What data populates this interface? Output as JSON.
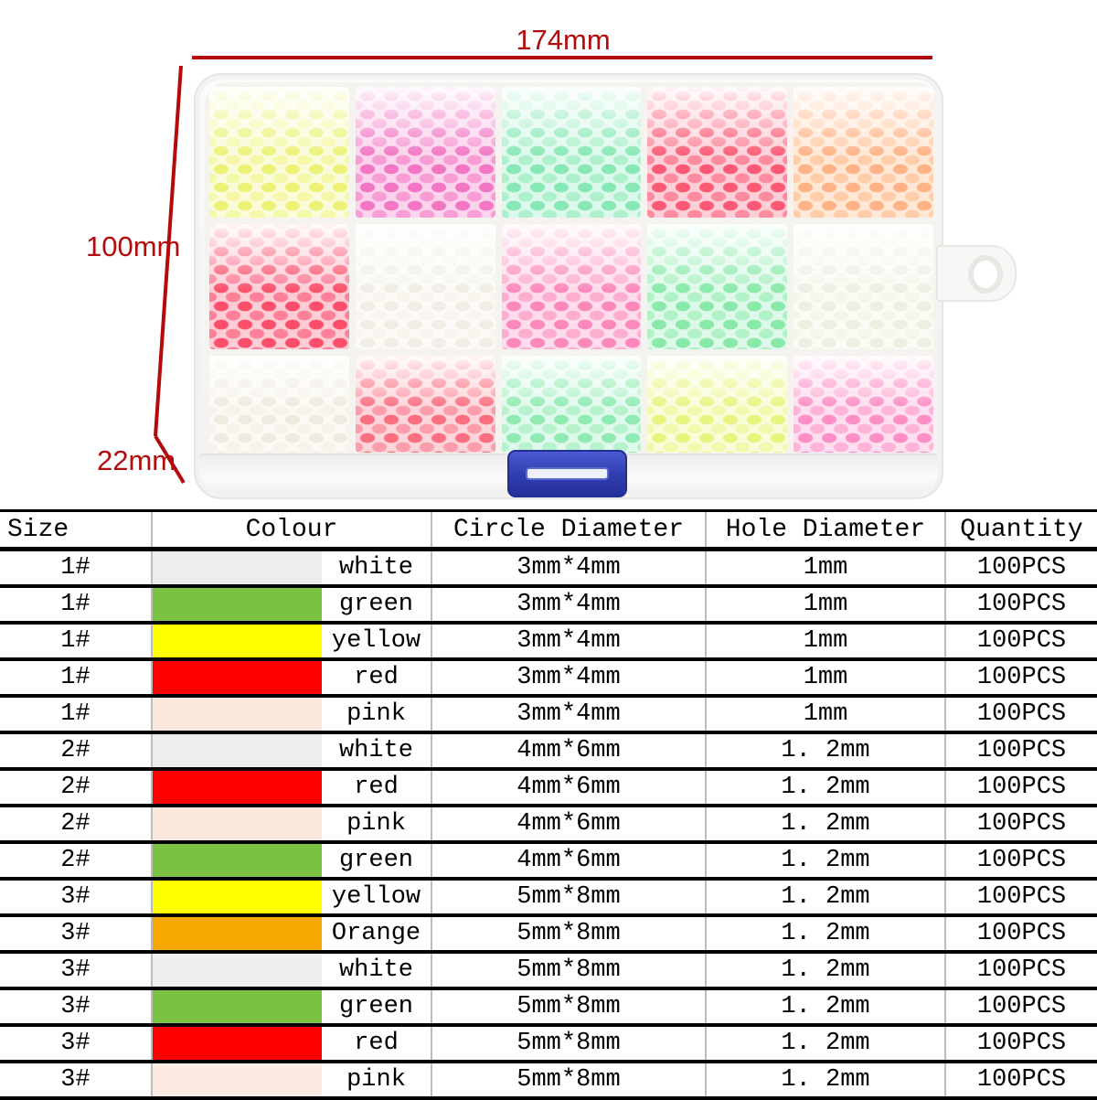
{
  "annotations": {
    "width_label": "174mm",
    "height_label": "100mm",
    "depth_label": "22mm",
    "line_color": "#b30b0b",
    "text_color": "#b30b0b"
  },
  "box": {
    "latch_color": "#2f3cae",
    "compartments": [
      {
        "name": "yellow",
        "color": "#edf276",
        "shade": "#f5f8a8",
        "light": "#f9fbda"
      },
      {
        "name": "pink",
        "color": "#f276c4",
        "shade": "#f79cd4",
        "light": "#fbd3ec"
      },
      {
        "name": "green",
        "color": "#86e8b4",
        "shade": "#aef0cc",
        "light": "#ddf8ec"
      },
      {
        "name": "red",
        "color": "#fa5a74",
        "shade": "#fc8ba0",
        "light": "#fdd0d9"
      },
      {
        "name": "orange",
        "color": "#ffb285",
        "shade": "#ffcda9",
        "light": "#ffe8d6"
      },
      {
        "name": "red-2",
        "color": "#fb4e6a",
        "shade": "#fd8099",
        "light": "#fdcdd6"
      },
      {
        "name": "white",
        "color": "#f0eee5",
        "shade": "#f7f5ee",
        "light": "#fbfaf6"
      },
      {
        "name": "pink-2",
        "color": "#fc87ba",
        "shade": "#fdaed0",
        "light": "#fedcec"
      },
      {
        "name": "green-2",
        "color": "#88e9a8",
        "shade": "#b0f1c6",
        "light": "#def9ea"
      },
      {
        "name": "white-2",
        "color": "#efeee3",
        "shade": "#f6f5ec",
        "light": "#fbfaf4"
      },
      {
        "name": "white-3",
        "color": "#efebe0",
        "shade": "#f6f3ea",
        "light": "#fbf9f4"
      },
      {
        "name": "red-3",
        "color": "#fa6f80",
        "shade": "#fc9dab",
        "light": "#fdd6db"
      },
      {
        "name": "green-3",
        "color": "#90ebb2",
        "shade": "#b6f2cc",
        "light": "#e0f9ed"
      },
      {
        "name": "yellow-2",
        "color": "#e9f480",
        "shade": "#f2f9ae",
        "light": "#f8fcd8"
      },
      {
        "name": "pink-3",
        "color": "#fd8ec6",
        "shade": "#feb4d8",
        "light": "#fedff0"
      }
    ]
  },
  "table": {
    "headers": [
      "Size",
      "Colour",
      "Circle Diameter",
      "Hole Diameter",
      "Quantity"
    ],
    "rows": [
      {
        "size": "1#",
        "colour": "white",
        "swatch": "#ededed",
        "circle": "3mm*4mm",
        "hole": "1mm",
        "qty": "100PCS"
      },
      {
        "size": "1#",
        "colour": "green",
        "swatch": "#7cc242",
        "circle": "3mm*4mm",
        "hole": "1mm",
        "qty": "100PCS"
      },
      {
        "size": "1#",
        "colour": "yellow",
        "swatch": "#ffff00",
        "circle": "3mm*4mm",
        "hole": "1mm",
        "qty": "100PCS"
      },
      {
        "size": "1#",
        "colour": "red",
        "swatch": "#ff0000",
        "circle": "3mm*4mm",
        "hole": "1mm",
        "qty": "100PCS"
      },
      {
        "size": "1#",
        "colour": "pink",
        "swatch": "#fbe8dc",
        "circle": "3mm*4mm",
        "hole": "1mm",
        "qty": "100PCS"
      },
      {
        "size": "2#",
        "colour": "white",
        "swatch": "#ebedee",
        "circle": "4mm*6mm",
        "hole": "1. 2mm",
        "qty": "100PCS"
      },
      {
        "size": "2#",
        "colour": "red",
        "swatch": "#ff0000",
        "circle": "4mm*6mm",
        "hole": "1. 2mm",
        "qty": "100PCS"
      },
      {
        "size": "2#",
        "colour": "pink",
        "swatch": "#fbe8dc",
        "circle": "4mm*6mm",
        "hole": "1. 2mm",
        "qty": "100PCS"
      },
      {
        "size": "2#",
        "colour": "green",
        "swatch": "#7cc242",
        "circle": "4mm*6mm",
        "hole": "1. 2mm",
        "qty": "100PCS"
      },
      {
        "size": "3#",
        "colour": "yellow",
        "swatch": "#ffff00",
        "circle": "5mm*8mm",
        "hole": "1. 2mm",
        "qty": "100PCS"
      },
      {
        "size": "3#",
        "colour": "Orange",
        "swatch": "#f7a800",
        "circle": "5mm*8mm",
        "hole": "1. 2mm",
        "qty": "100PCS"
      },
      {
        "size": "3#",
        "colour": "white",
        "swatch": "#efefef",
        "circle": "5mm*8mm",
        "hole": "1. 2mm",
        "qty": "100PCS"
      },
      {
        "size": "3#",
        "colour": "green",
        "swatch": "#7cc242",
        "circle": "5mm*8mm",
        "hole": "1. 2mm",
        "qty": "100PCS"
      },
      {
        "size": "3#",
        "colour": "red",
        "swatch": "#ff0000",
        "circle": "5mm*8mm",
        "hole": "1. 2mm",
        "qty": "100PCS"
      },
      {
        "size": "3#",
        "colour": "pink",
        "swatch": "#fcebe0",
        "circle": "5mm*8mm",
        "hole": "1. 2mm",
        "qty": "100PCS"
      }
    ]
  }
}
